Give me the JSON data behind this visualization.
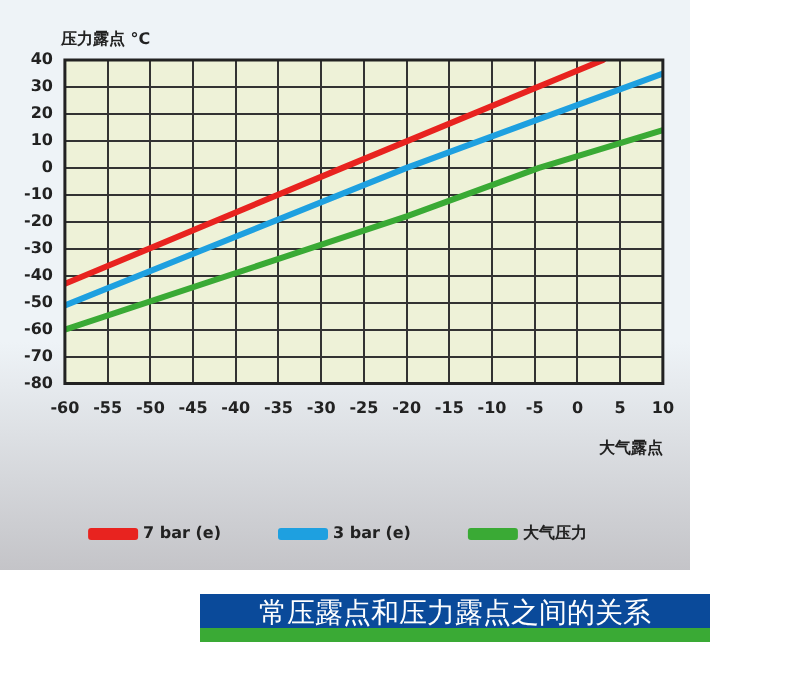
{
  "chart_data": {
    "type": "line",
    "title": "常压露点和压力露点之间的关系",
    "xlabel": "大气露点",
    "ylabel": "压力露点 °C",
    "xlim": [
      -60,
      10
    ],
    "xticks": [
      -60,
      -55,
      -50,
      -45,
      -40,
      -35,
      -30,
      -25,
      -20,
      -15,
      -10,
      -5,
      0,
      5,
      10
    ],
    "ylim": [
      -80,
      40
    ],
    "yticks": [
      -80,
      -70,
      -60,
      -50,
      -40,
      -30,
      -20,
      -10,
      0,
      10,
      20,
      30,
      40
    ],
    "grid": true,
    "legend": "bottom",
    "marker": "none",
    "line_style": "solid",
    "series": [
      {
        "name": "7 bar (e)",
        "color": "#e8231f",
        "x": [
          -60,
          -27.5,
          3
        ],
        "values": [
          -43,
          0,
          40
        ]
      },
      {
        "name": "3 bar (e)",
        "color": "#1ea0e0",
        "x": [
          -60,
          -20,
          10
        ],
        "values": [
          -51,
          0,
          35
        ]
      },
      {
        "name": "大气压力",
        "color": "#3aaa35",
        "x": [
          -60,
          -20,
          -4.5,
          10
        ],
        "values": [
          -60,
          -18,
          0,
          14
        ]
      }
    ]
  }
}
